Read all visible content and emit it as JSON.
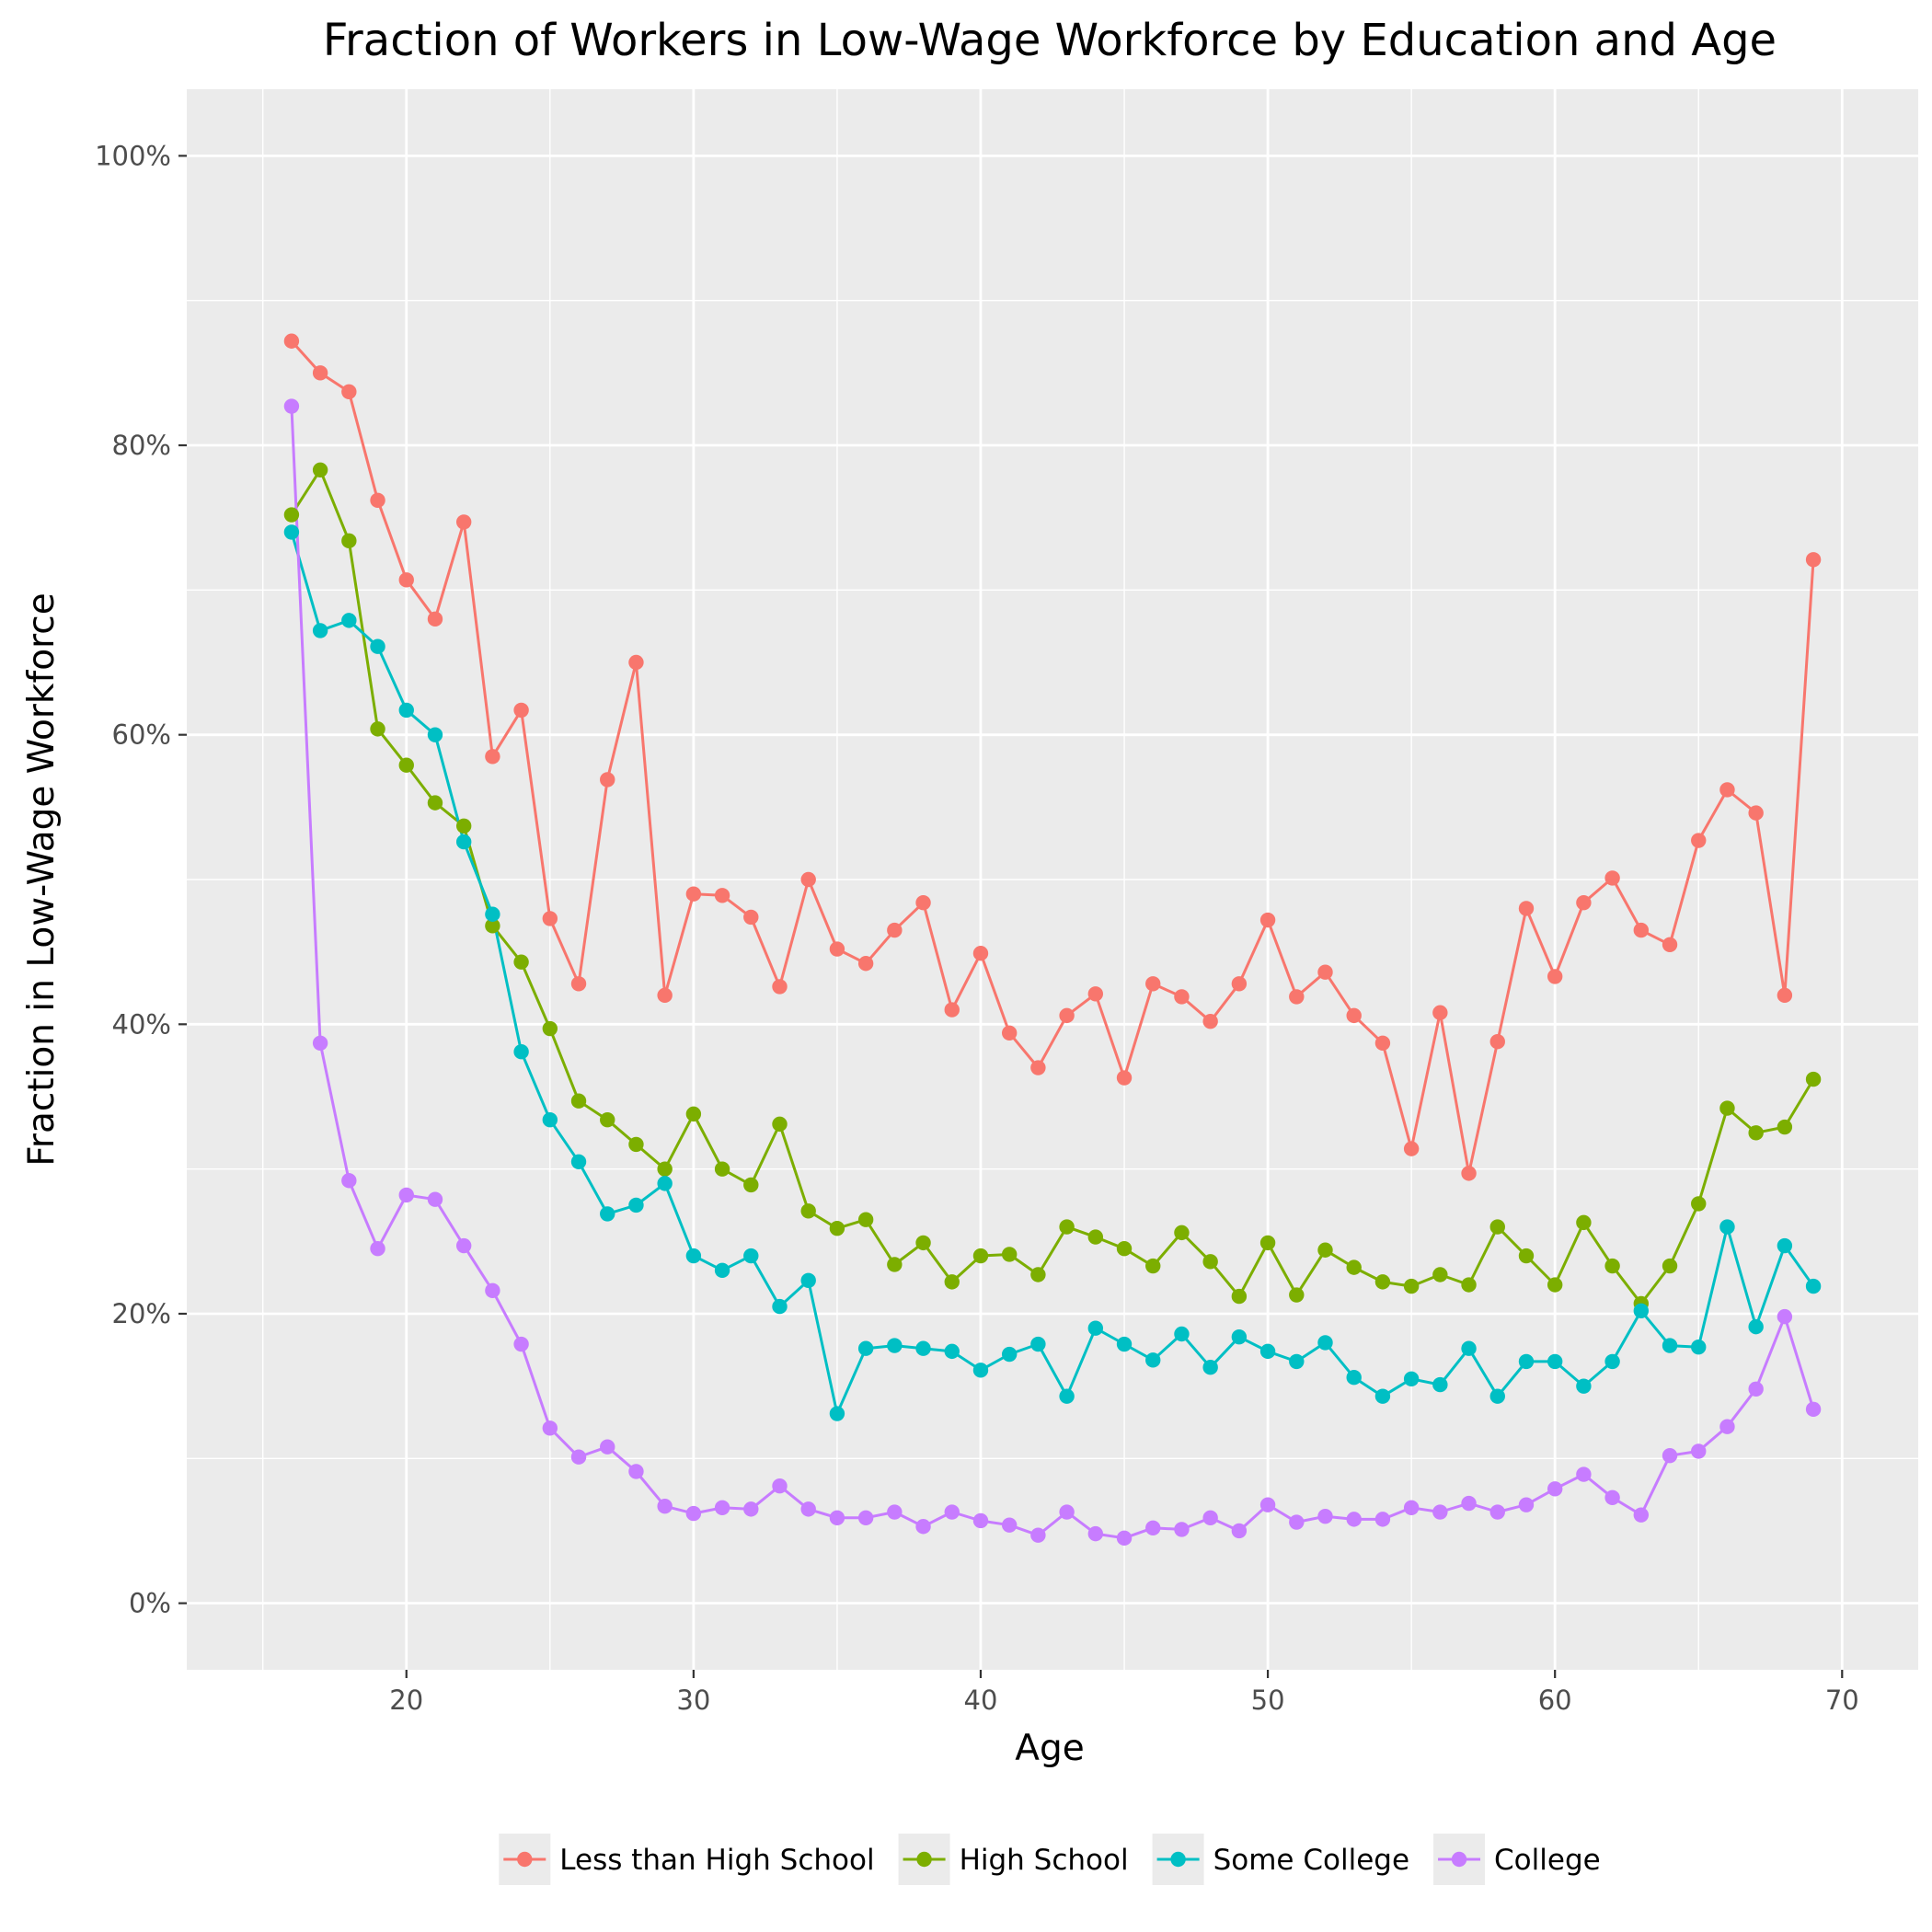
{
  "chart_data": {
    "type": "line",
    "title": "Fraction of Workers in Low-Wage Workforce by Education and Age",
    "xlabel": "Age",
    "ylabel": "Fraction in Low-Wage Workforce",
    "xlim": [
      12.35,
      72.65
    ],
    "ylim": [
      -0.046,
      1.046
    ],
    "x_ticks": [
      20,
      30,
      40,
      50,
      60,
      70
    ],
    "x_tick_labels": [
      "20",
      "30",
      "40",
      "50",
      "60",
      "70"
    ],
    "x_minor_ticks": [
      15,
      25,
      35,
      45,
      55,
      65
    ],
    "y_ticks": [
      0,
      0.2,
      0.4,
      0.6,
      0.8,
      1.0
    ],
    "y_tick_labels": [
      "0%",
      "20%",
      "40%",
      "60%",
      "80%",
      "100%"
    ],
    "y_minor_ticks": [
      0.1,
      0.3,
      0.5,
      0.7,
      0.9
    ],
    "grid": true,
    "legend_position": "bottom",
    "background": "#ebebeb",
    "x": [
      16,
      17,
      18,
      19,
      20,
      21,
      22,
      23,
      24,
      25,
      26,
      27,
      28,
      29,
      30,
      31,
      32,
      33,
      34,
      35,
      36,
      37,
      38,
      39,
      40,
      41,
      42,
      43,
      44,
      45,
      46,
      47,
      48,
      49,
      50,
      51,
      52,
      53,
      54,
      55,
      56,
      57,
      58,
      59,
      60,
      61,
      62,
      63,
      64,
      65,
      66,
      67,
      68,
      69
    ],
    "series": [
      {
        "name": "Less than High School",
        "color": "#f8766d",
        "values": [
          0.872,
          0.85,
          0.837,
          0.762,
          0.707,
          0.68,
          0.747,
          0.585,
          0.617,
          0.473,
          0.428,
          0.569,
          0.65,
          0.42,
          0.49,
          0.489,
          0.474,
          0.426,
          0.5,
          0.452,
          0.442,
          0.465,
          0.484,
          0.41,
          0.449,
          0.394,
          0.37,
          0.406,
          0.421,
          0.363,
          0.428,
          0.419,
          0.402,
          0.428,
          0.472,
          0.419,
          0.436,
          0.406,
          0.387,
          0.314,
          0.408,
          0.297,
          0.388,
          0.48,
          0.433,
          0.484,
          0.501,
          0.465,
          0.455,
          0.527,
          0.562,
          0.546,
          0.42,
          0.721
        ]
      },
      {
        "name": "High School",
        "color": "#7cae00",
        "values": [
          0.752,
          0.783,
          0.734,
          0.604,
          0.579,
          0.553,
          0.537,
          0.468,
          0.443,
          0.397,
          0.347,
          0.334,
          0.317,
          0.3,
          0.338,
          0.3,
          0.289,
          0.331,
          0.271,
          0.259,
          0.265,
          0.234,
          0.249,
          0.222,
          0.24,
          0.241,
          0.227,
          0.26,
          0.253,
          0.245,
          0.233,
          0.256,
          0.236,
          0.212,
          0.249,
          0.213,
          0.244,
          0.232,
          0.222,
          0.219,
          0.227,
          0.22,
          0.26,
          0.24,
          0.22,
          0.263,
          0.233,
          0.207,
          0.233,
          0.276,
          0.342,
          0.325,
          0.329,
          0.362
        ]
      },
      {
        "name": "Some College",
        "color": "#00bfc4",
        "values": [
          0.74,
          0.672,
          0.679,
          0.661,
          0.617,
          0.6,
          0.526,
          0.476,
          0.381,
          0.334,
          0.305,
          0.269,
          0.275,
          0.29,
          0.24,
          0.23,
          0.24,
          0.205,
          0.223,
          0.131,
          0.176,
          0.178,
          0.176,
          0.174,
          0.161,
          0.172,
          0.179,
          0.143,
          0.19,
          0.179,
          0.168,
          0.186,
          0.163,
          0.184,
          0.174,
          0.167,
          0.18,
          0.156,
          0.143,
          0.155,
          0.151,
          0.176,
          0.143,
          0.167,
          0.167,
          0.15,
          0.167,
          0.202,
          0.178,
          0.177,
          0.26,
          0.191,
          0.247,
          0.219
        ]
      },
      {
        "name": "College",
        "color": "#c77cff",
        "values": [
          0.827,
          0.387,
          0.292,
          0.245,
          0.282,
          0.279,
          0.247,
          0.216,
          0.179,
          0.121,
          0.101,
          0.108,
          0.091,
          0.067,
          0.062,
          0.066,
          0.065,
          0.081,
          0.065,
          0.059,
          0.059,
          0.063,
          0.053,
          0.063,
          0.057,
          0.054,
          0.047,
          0.063,
          0.048,
          0.045,
          0.052,
          0.051,
          0.059,
          0.05,
          0.068,
          0.056,
          0.06,
          0.058,
          0.058,
          0.066,
          0.063,
          0.069,
          0.063,
          0.068,
          0.079,
          0.089,
          0.073,
          0.061,
          0.102,
          0.105,
          0.122,
          0.148,
          0.198,
          0.134
        ]
      }
    ]
  }
}
